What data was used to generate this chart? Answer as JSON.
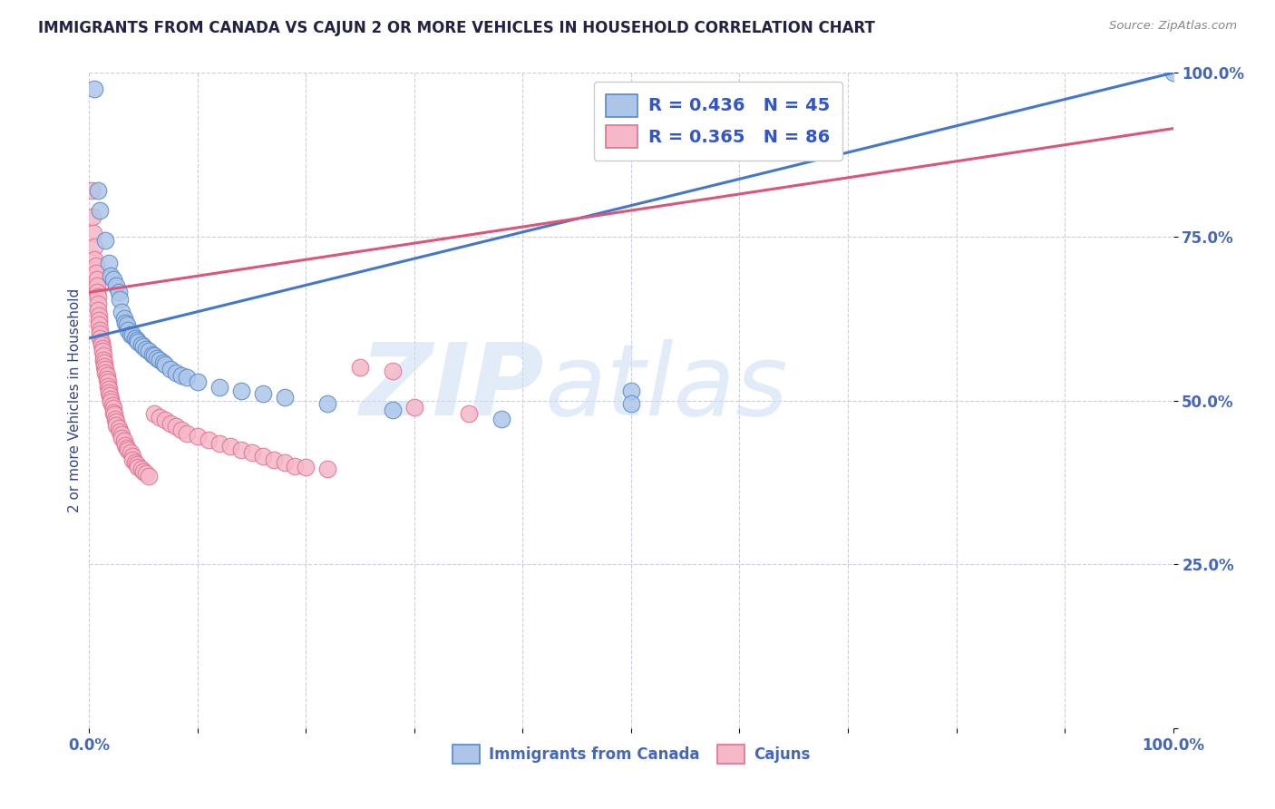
{
  "title": "IMMIGRANTS FROM CANADA VS CAJUN 2 OR MORE VEHICLES IN HOUSEHOLD CORRELATION CHART",
  "source": "Source: ZipAtlas.com",
  "ylabel": "2 or more Vehicles in Household",
  "watermark_zip": "ZIP",
  "watermark_atlas": "atlas",
  "xlim": [
    0.0,
    1.0
  ],
  "ylim": [
    0.0,
    1.0
  ],
  "xtick_positions": [
    0.0,
    0.1,
    0.2,
    0.3,
    0.4,
    0.5,
    0.6,
    0.7,
    0.8,
    0.9,
    1.0
  ],
  "xtick_labels": [
    "0.0%",
    "",
    "",
    "",
    "",
    "",
    "",
    "",
    "",
    "",
    "100.0%"
  ],
  "ytick_positions": [
    0.0,
    0.25,
    0.5,
    0.75,
    1.0
  ],
  "ytick_labels": [
    "",
    "25.0%",
    "50.0%",
    "75.0%",
    "100.0%"
  ],
  "legend_blue_r": "R = 0.436",
  "legend_blue_n": "N = 45",
  "legend_pink_r": "R = 0.365",
  "legend_pink_n": "N = 86",
  "legend_label_blue": "Immigrants from Canada",
  "legend_label_pink": "Cajuns",
  "blue_color": "#adc6e8",
  "pink_color": "#f5b8c8",
  "blue_edge_color": "#5588cc",
  "pink_edge_color": "#e07090",
  "blue_line_color": "#4477cc",
  "pink_line_color": "#dd5577",
  "title_color": "#222244",
  "axis_label_color": "#334488",
  "tick_color": "#4466bb",
  "legend_text_color": "#3355cc",
  "source_color": "#888888",
  "grid_color": "#ccccdd",
  "background_color": "#ffffff",
  "blue_line": [
    0.0,
    0.595,
    1.0,
    1.0
  ],
  "pink_line": [
    0.0,
    0.665,
    1.0,
    0.915
  ],
  "blue_scatter": [
    [
      0.005,
      0.975
    ],
    [
      0.008,
      0.82
    ],
    [
      0.01,
      0.79
    ],
    [
      0.015,
      0.745
    ],
    [
      0.018,
      0.71
    ],
    [
      0.02,
      0.69
    ],
    [
      0.022,
      0.685
    ],
    [
      0.025,
      0.675
    ],
    [
      0.027,
      0.665
    ],
    [
      0.028,
      0.655
    ],
    [
      0.03,
      0.635
    ],
    [
      0.032,
      0.625
    ],
    [
      0.033,
      0.618
    ],
    [
      0.035,
      0.615
    ],
    [
      0.036,
      0.608
    ],
    [
      0.038,
      0.6
    ],
    [
      0.04,
      0.6
    ],
    [
      0.042,
      0.595
    ],
    [
      0.044,
      0.592
    ],
    [
      0.045,
      0.59
    ],
    [
      0.048,
      0.585
    ],
    [
      0.05,
      0.582
    ],
    [
      0.052,
      0.578
    ],
    [
      0.055,
      0.575
    ],
    [
      0.058,
      0.57
    ],
    [
      0.06,
      0.568
    ],
    [
      0.062,
      0.565
    ],
    [
      0.065,
      0.562
    ],
    [
      0.068,
      0.558
    ],
    [
      0.07,
      0.555
    ],
    [
      0.075,
      0.548
    ],
    [
      0.08,
      0.542
    ],
    [
      0.085,
      0.538
    ],
    [
      0.09,
      0.535
    ],
    [
      0.1,
      0.528
    ],
    [
      0.12,
      0.52
    ],
    [
      0.14,
      0.515
    ],
    [
      0.16,
      0.51
    ],
    [
      0.18,
      0.505
    ],
    [
      0.22,
      0.495
    ],
    [
      0.28,
      0.485
    ],
    [
      0.38,
      0.472
    ],
    [
      0.5,
      0.515
    ],
    [
      0.5,
      0.495
    ],
    [
      1.0,
      1.0
    ]
  ],
  "pink_scatter": [
    [
      0.002,
      0.82
    ],
    [
      0.003,
      0.78
    ],
    [
      0.004,
      0.755
    ],
    [
      0.005,
      0.735
    ],
    [
      0.005,
      0.715
    ],
    [
      0.006,
      0.705
    ],
    [
      0.006,
      0.695
    ],
    [
      0.007,
      0.685
    ],
    [
      0.007,
      0.675
    ],
    [
      0.007,
      0.665
    ],
    [
      0.008,
      0.658
    ],
    [
      0.008,
      0.648
    ],
    [
      0.008,
      0.638
    ],
    [
      0.009,
      0.63
    ],
    [
      0.009,
      0.622
    ],
    [
      0.009,
      0.615
    ],
    [
      0.01,
      0.608
    ],
    [
      0.01,
      0.602
    ],
    [
      0.01,
      0.595
    ],
    [
      0.011,
      0.59
    ],
    [
      0.011,
      0.585
    ],
    [
      0.012,
      0.58
    ],
    [
      0.012,
      0.575
    ],
    [
      0.013,
      0.568
    ],
    [
      0.013,
      0.562
    ],
    [
      0.014,
      0.558
    ],
    [
      0.014,
      0.552
    ],
    [
      0.015,
      0.548
    ],
    [
      0.015,
      0.542
    ],
    [
      0.016,
      0.538
    ],
    [
      0.016,
      0.532
    ],
    [
      0.017,
      0.528
    ],
    [
      0.017,
      0.522
    ],
    [
      0.018,
      0.518
    ],
    [
      0.018,
      0.512
    ],
    [
      0.019,
      0.508
    ],
    [
      0.02,
      0.502
    ],
    [
      0.02,
      0.498
    ],
    [
      0.021,
      0.492
    ],
    [
      0.022,
      0.488
    ],
    [
      0.022,
      0.482
    ],
    [
      0.023,
      0.478
    ],
    [
      0.024,
      0.472
    ],
    [
      0.025,
      0.468
    ],
    [
      0.025,
      0.462
    ],
    [
      0.027,
      0.458
    ],
    [
      0.028,
      0.452
    ],
    [
      0.03,
      0.448
    ],
    [
      0.03,
      0.442
    ],
    [
      0.032,
      0.438
    ],
    [
      0.033,
      0.432
    ],
    [
      0.035,
      0.428
    ],
    [
      0.036,
      0.425
    ],
    [
      0.038,
      0.42
    ],
    [
      0.04,
      0.415
    ],
    [
      0.04,
      0.41
    ],
    [
      0.042,
      0.405
    ],
    [
      0.044,
      0.402
    ],
    [
      0.045,
      0.398
    ],
    [
      0.048,
      0.395
    ],
    [
      0.05,
      0.392
    ],
    [
      0.052,
      0.388
    ],
    [
      0.055,
      0.385
    ],
    [
      0.06,
      0.48
    ],
    [
      0.065,
      0.475
    ],
    [
      0.07,
      0.47
    ],
    [
      0.075,
      0.465
    ],
    [
      0.08,
      0.46
    ],
    [
      0.085,
      0.455
    ],
    [
      0.09,
      0.45
    ],
    [
      0.1,
      0.445
    ],
    [
      0.11,
      0.44
    ],
    [
      0.12,
      0.435
    ],
    [
      0.13,
      0.43
    ],
    [
      0.14,
      0.425
    ],
    [
      0.15,
      0.42
    ],
    [
      0.16,
      0.415
    ],
    [
      0.17,
      0.41
    ],
    [
      0.18,
      0.405
    ],
    [
      0.19,
      0.4
    ],
    [
      0.2,
      0.398
    ],
    [
      0.22,
      0.395
    ],
    [
      0.25,
      0.55
    ],
    [
      0.28,
      0.545
    ],
    [
      0.3,
      0.49
    ],
    [
      0.35,
      0.48
    ]
  ]
}
